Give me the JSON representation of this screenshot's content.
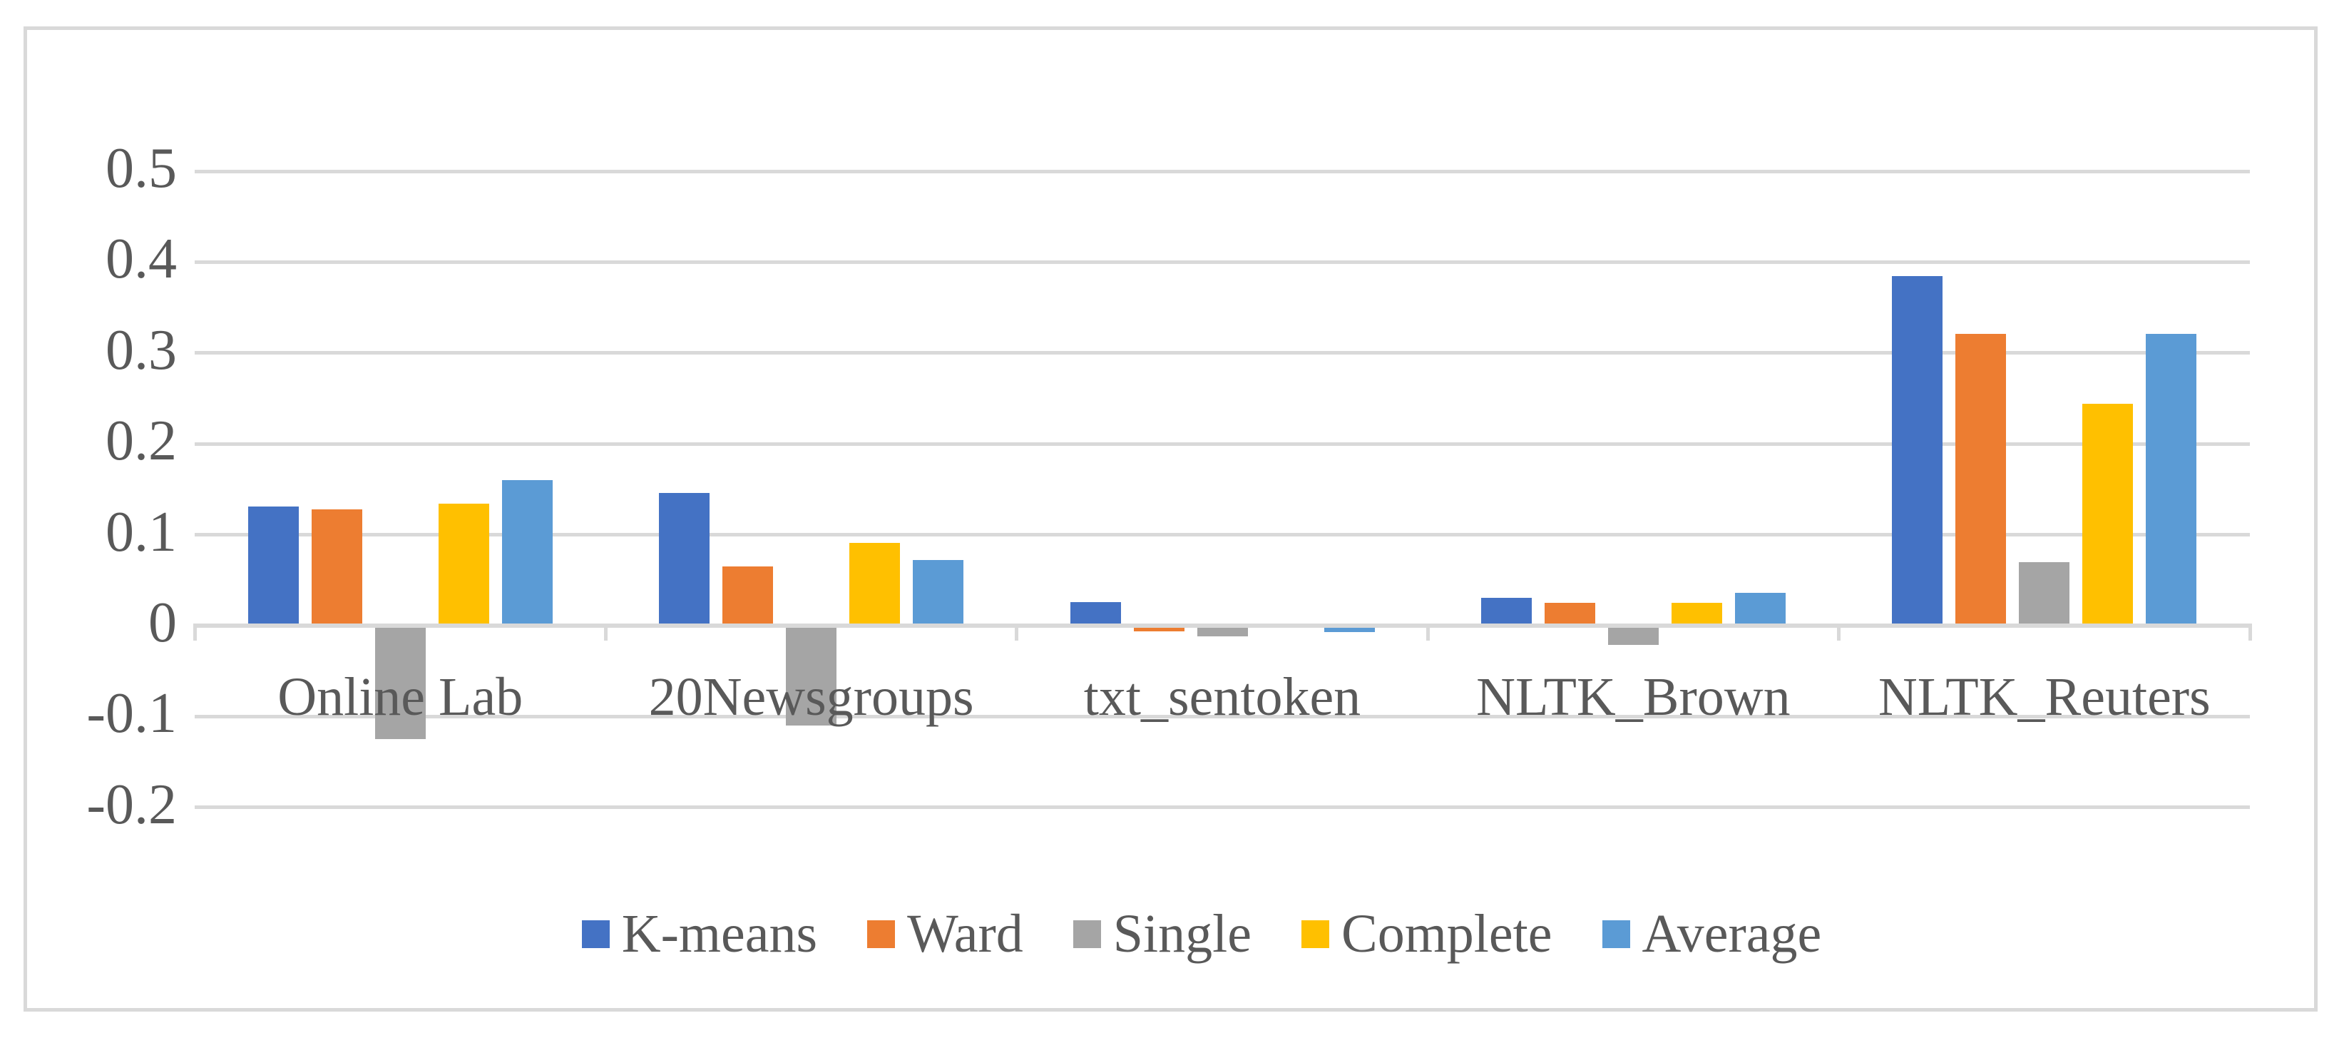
{
  "figure": {
    "background": "#FFFFFF",
    "border_color": "#D9D9D9"
  },
  "chart_data": {
    "type": "bar",
    "title": "",
    "xlabel": "",
    "ylabel": "",
    "categories": [
      "Online Lab",
      "20Newsgroups",
      "txt_sentoken",
      "NLTK_Brown",
      "NLTK_Reuters"
    ],
    "series": [
      {
        "name": "K-means",
        "color": "#4472C4",
        "values": [
          0.131,
          0.146,
          0.026,
          0.031,
          0.385
        ]
      },
      {
        "name": "Ward",
        "color": "#ED7D31",
        "values": [
          0.128,
          0.065,
          -0.006,
          0.025,
          0.321
        ]
      },
      {
        "name": "Single",
        "color": "#A5A5A5",
        "values": [
          -0.125,
          -0.11,
          -0.012,
          -0.021,
          0.07
        ]
      },
      {
        "name": "Complete",
        "color": "#FFC000",
        "values": [
          0.134,
          0.091,
          0.0,
          0.025,
          0.244
        ]
      },
      {
        "name": "Average",
        "color": "#5B9BD5",
        "values": [
          0.16,
          0.072,
          -0.007,
          0.036,
          0.321
        ]
      }
    ],
    "y_axis": {
      "ticks": [
        0.5,
        0.4,
        0.3,
        0.2,
        0.1,
        0,
        -0.1,
        -0.2
      ],
      "tick_labels": [
        "0.5",
        "0.4",
        "0.3",
        "0.2",
        "0.1",
        "0",
        "-0.1",
        "-0.2"
      ],
      "min": -0.25,
      "max": 0.55,
      "grid": true,
      "gridline_color": "#D9D9D9",
      "axis_line_color": "#D9D9D9",
      "label_color": "#595959"
    },
    "x_axis": {
      "label_color": "#595959",
      "tick_color": "#D9D9D9"
    },
    "legend": {
      "position": "bottom",
      "entries": [
        "K-means",
        "Ward",
        "Single",
        "Complete",
        "Average"
      ],
      "label_color": "#595959"
    }
  }
}
